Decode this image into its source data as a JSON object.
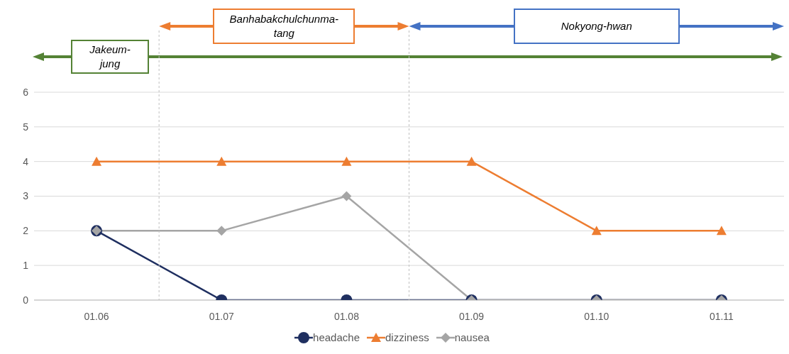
{
  "chart_data": {
    "type": "line",
    "categories": [
      "01.06",
      "01.07",
      "01.08",
      "01.09",
      "01.10",
      "01.11"
    ],
    "series": [
      {
        "name": "headache",
        "color": "#1f2f60",
        "marker": "circle",
        "values": [
          2,
          0,
          0,
          0,
          0,
          0
        ]
      },
      {
        "name": "dizziness",
        "color": "#ed7d31",
        "marker": "triangle",
        "values": [
          4,
          4,
          4,
          4,
          2,
          2
        ]
      },
      {
        "name": "nausea",
        "color": "#a5a5a5",
        "marker": "diamond",
        "values": [
          2,
          2,
          3,
          0,
          0,
          0
        ]
      }
    ],
    "annotations": [
      "Jakeum-jung",
      "Banhabakchulchunma-tang",
      "Nokyong-hwan"
    ],
    "ylim": [
      0,
      6
    ],
    "yticks": [
      0,
      1,
      2,
      3,
      4,
      5,
      6
    ],
    "grid": "y",
    "legend": "bottom"
  }
}
